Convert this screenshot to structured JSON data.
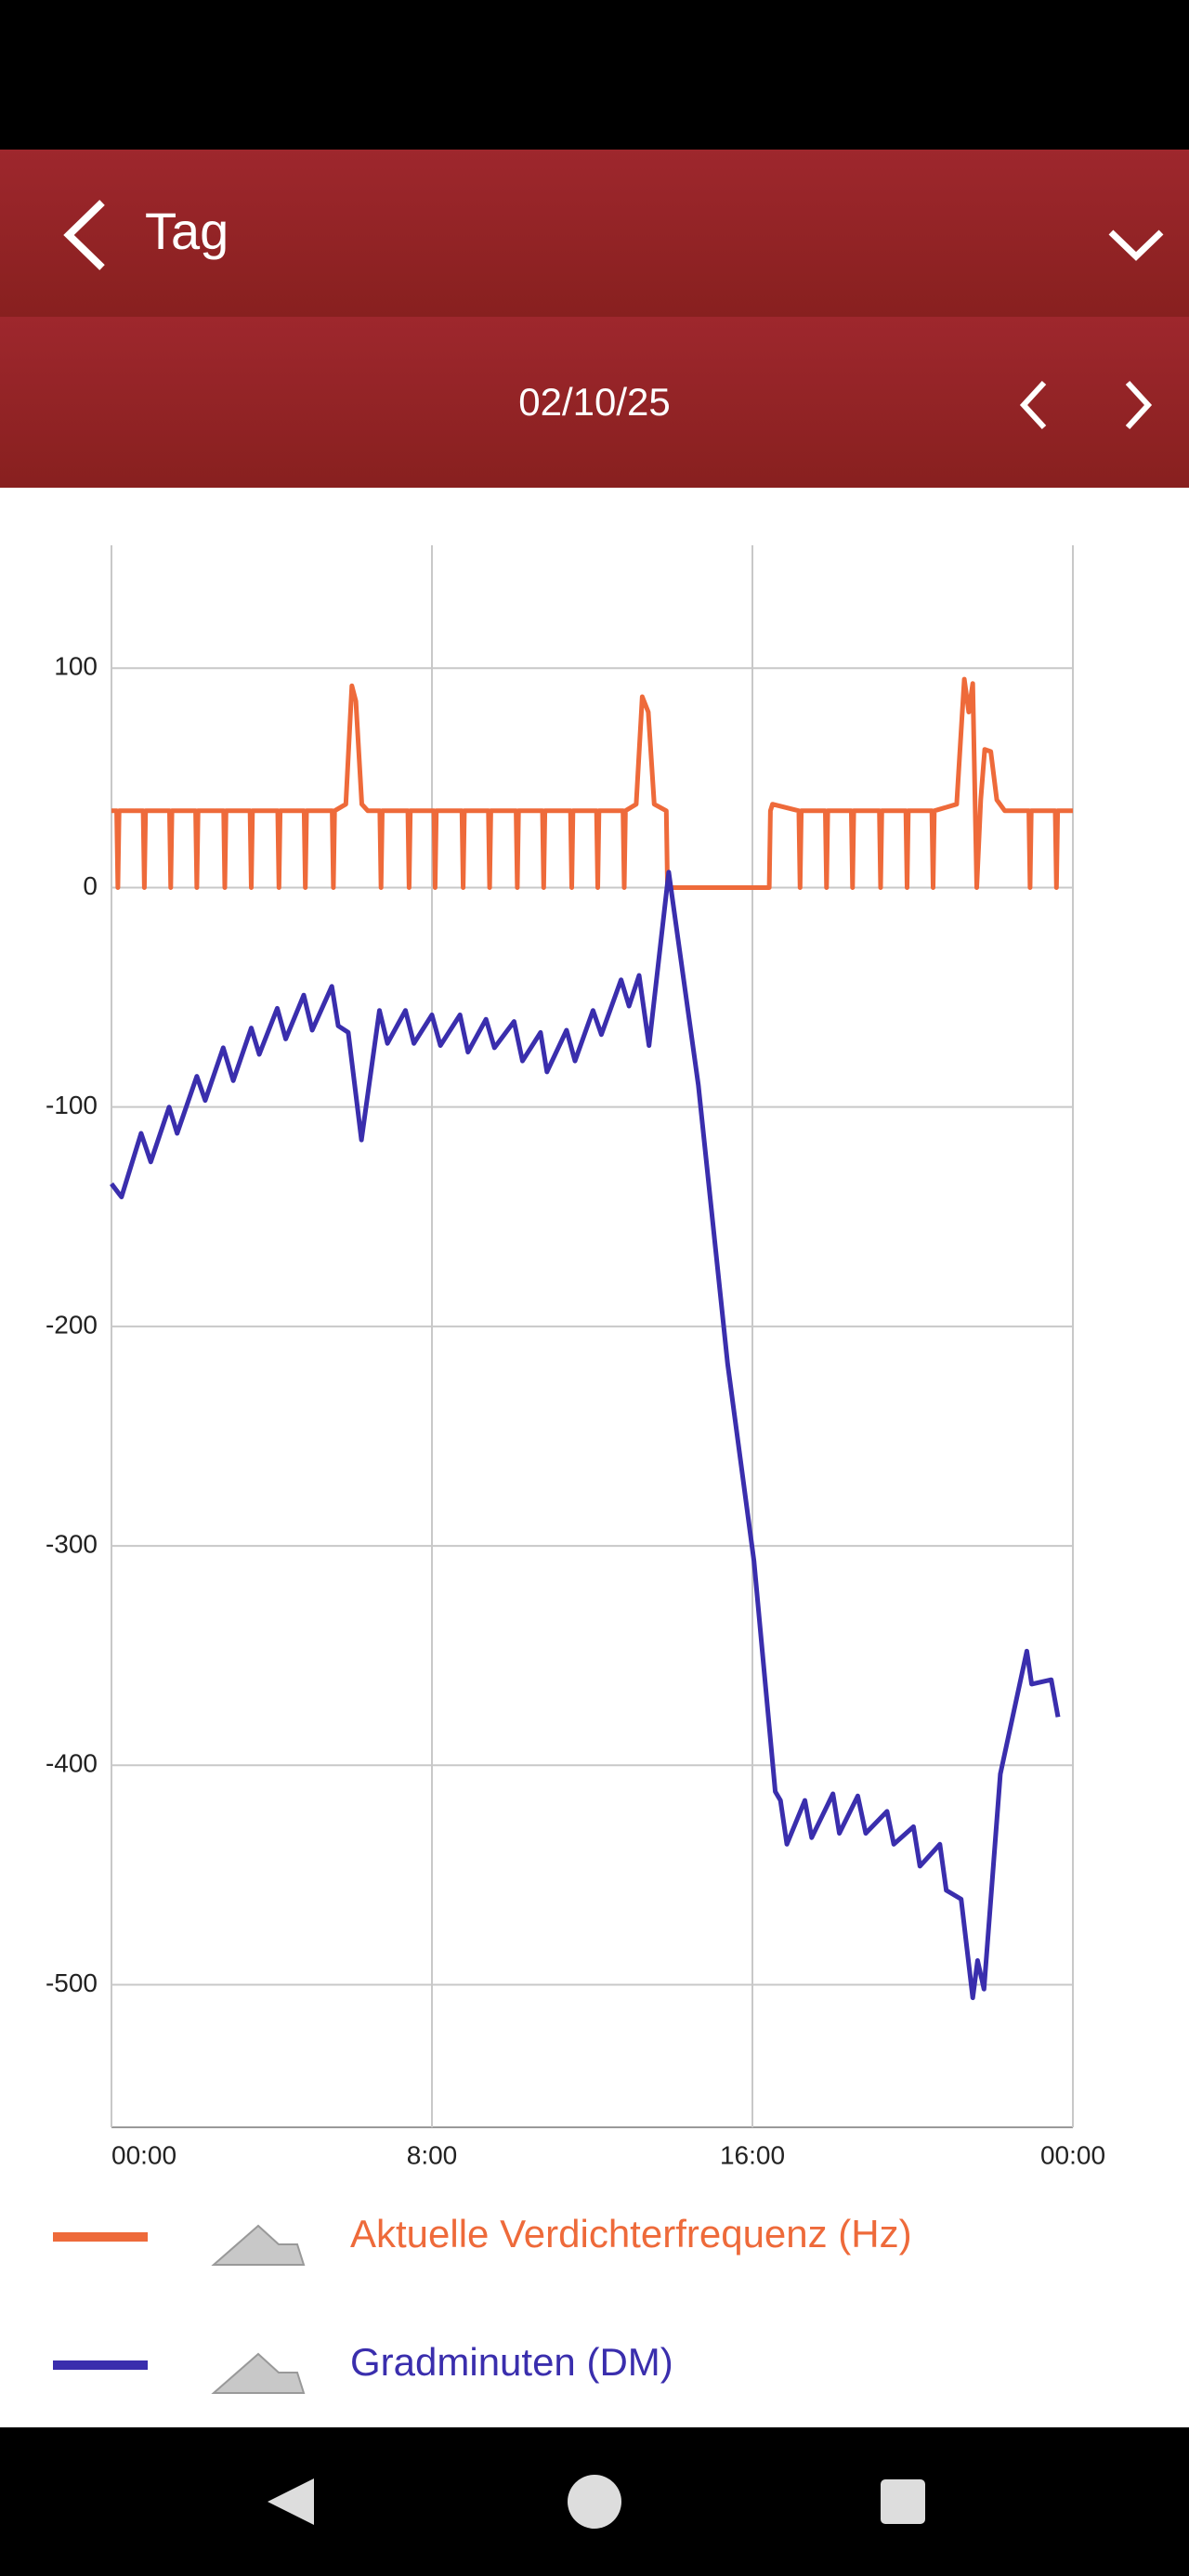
{
  "header": {
    "title": "Tag",
    "date": "02/10/25"
  },
  "chart_data": {
    "type": "line",
    "xlim": [
      0,
      24
    ],
    "xticks": [
      {
        "value": 0,
        "label": "00:00"
      },
      {
        "value": 8,
        "label": "8:00"
      },
      {
        "value": 16,
        "label": "16:00"
      },
      {
        "value": 24,
        "label": "00:00"
      }
    ],
    "ylim": [
      -565,
      156
    ],
    "yticks": [
      -500,
      -400,
      -300,
      -200,
      -100,
      0,
      100
    ],
    "grid": true,
    "series": [
      {
        "name": "Aktuelle Verdichterfrequenz (Hz)",
        "color": "#ee6a3a",
        "x": [
          0,
          0.13,
          0.16,
          0.19,
          0.79,
          0.82,
          0.85,
          1.45,
          1.48,
          1.51,
          2.1,
          2.13,
          2.16,
          2.8,
          2.83,
          2.86,
          3.46,
          3.49,
          3.52,
          4.15,
          4.18,
          4.21,
          4.81,
          4.84,
          4.87,
          5.51,
          5.54,
          5.57,
          5.85,
          6.0,
          6.1,
          6.25,
          6.4,
          6.7,
          6.73,
          6.76,
          7.4,
          7.43,
          7.46,
          8.05,
          8.08,
          8.11,
          8.75,
          8.78,
          8.81,
          9.41,
          9.44,
          9.47,
          10.1,
          10.13,
          10.16,
          10.76,
          10.79,
          10.82,
          11.46,
          11.49,
          11.52,
          12.11,
          12.14,
          12.17,
          12.77,
          12.8,
          12.83,
          13.1,
          13.25,
          13.4,
          13.55,
          13.85,
          13.88,
          16.42,
          16.45,
          16.5,
          17.16,
          17.19,
          17.22,
          17.82,
          17.85,
          17.88,
          18.47,
          18.5,
          18.53,
          19.17,
          19.2,
          19.23,
          19.83,
          19.86,
          19.89,
          20.48,
          20.51,
          20.54,
          21.1,
          21.29,
          21.4,
          21.5,
          21.6,
          21.7,
          21.8,
          21.95,
          22.1,
          22.3,
          22.9,
          22.93,
          22.96,
          23.56,
          23.59,
          23.62,
          24
        ],
        "values": [
          35,
          35,
          0,
          35,
          35,
          0,
          35,
          35,
          0,
          35,
          35,
          0,
          35,
          35,
          0,
          35,
          35,
          0,
          35,
          35,
          0,
          35,
          35,
          0,
          35,
          35,
          0,
          35,
          38,
          92,
          85,
          38,
          35,
          35,
          0,
          35,
          35,
          0,
          35,
          35,
          0,
          35,
          35,
          0,
          35,
          35,
          0,
          35,
          35,
          0,
          35,
          35,
          0,
          35,
          35,
          0,
          35,
          35,
          0,
          35,
          35,
          0,
          35,
          38,
          87,
          80,
          38,
          35,
          0,
          0,
          35,
          38,
          35,
          0,
          35,
          35,
          0,
          35,
          35,
          0,
          35,
          35,
          0,
          35,
          35,
          0,
          35,
          35,
          0,
          35,
          38,
          95,
          80,
          93,
          0,
          40,
          63,
          62,
          40,
          35,
          35,
          0,
          35,
          35,
          0,
          35,
          35
        ]
      },
      {
        "name": "Gradminuten (DM)",
        "color": "#3a2ead",
        "x": [
          0,
          0.25,
          0.74,
          0.98,
          1.44,
          1.64,
          2.13,
          2.34,
          2.79,
          3.04,
          3.49,
          3.69,
          4.14,
          4.35,
          4.8,
          5.01,
          5.5,
          5.66,
          5.91,
          6.24,
          6.69,
          6.89,
          7.34,
          7.55,
          8.0,
          8.21,
          8.7,
          8.9,
          9.35,
          9.56,
          10.05,
          10.26,
          10.71,
          10.87,
          11.36,
          11.57,
          12.02,
          12.23,
          12.72,
          12.92,
          13.17,
          13.42,
          13.91,
          14.65,
          15.38,
          16.04,
          16.57,
          16.7,
          16.86,
          17.31,
          17.48,
          18.01,
          18.17,
          18.63,
          18.83,
          19.36,
          19.53,
          20.02,
          20.18,
          20.68,
          20.84,
          21.21,
          21.5,
          21.62,
          21.78,
          22.19,
          22.85,
          22.97,
          23.46,
          23.63
        ],
        "values": [
          -135,
          -141,
          -112,
          -125,
          -100,
          -112,
          -86,
          -97,
          -73,
          -88,
          -64,
          -76,
          -55,
          -69,
          -49,
          -65,
          -45,
          -63,
          -66,
          -115,
          -56,
          -71,
          -56,
          -71,
          -58,
          -72,
          -58,
          -75,
          -60,
          -73,
          -61,
          -79,
          -66,
          -84,
          -65,
          -79,
          -56,
          -67,
          -42,
          -54,
          -40,
          -72,
          7,
          -90,
          -217,
          -307,
          -412,
          -416,
          -436,
          -416,
          -433,
          -413,
          -431,
          -414,
          -431,
          -421,
          -436,
          -428,
          -446,
          -436,
          -457,
          -461,
          -506,
          -489,
          -502,
          -404,
          -348,
          -363,
          -361,
          -378
        ]
      }
    ]
  }
}
